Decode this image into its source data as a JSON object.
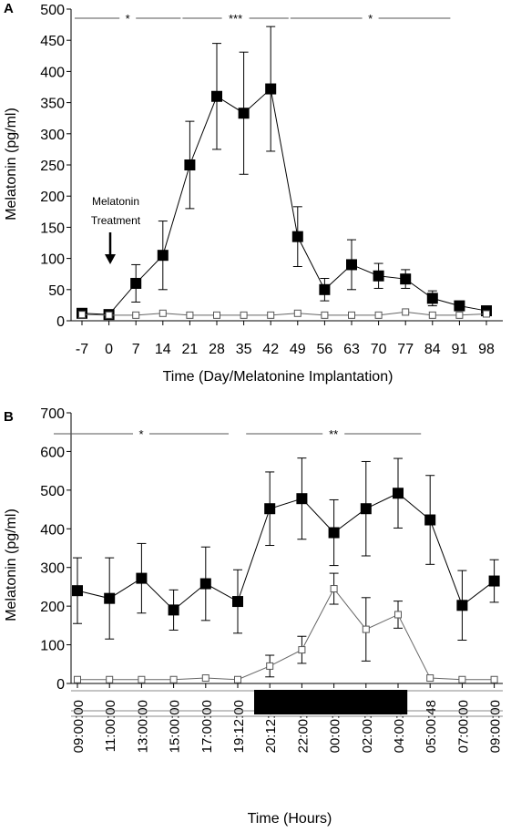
{
  "chart_data": [
    {
      "panel_label": "A",
      "type": "line",
      "ylabel": "Melatonin (pg/ml)",
      "xlabel": "Time (Day/Melatonine Implantation)",
      "ylim": [
        0,
        500
      ],
      "yticks": [
        0,
        50,
        100,
        150,
        200,
        250,
        300,
        350,
        400,
        450,
        500
      ],
      "categories": [
        "-7",
        "0",
        "7",
        "14",
        "21",
        "28",
        "35",
        "42",
        "49",
        "56",
        "63",
        "70",
        "77",
        "84",
        "91",
        "98"
      ],
      "grid": false,
      "series": [
        {
          "marker": "filled-square",
          "color": "#000000",
          "values": [
            12,
            10,
            60,
            105,
            250,
            360,
            333,
            372,
            135,
            50,
            90,
            72,
            67,
            36,
            24,
            16
          ],
          "err_low": [
            0,
            0,
            30,
            55,
            70,
            85,
            98,
            100,
            48,
            18,
            40,
            20,
            15,
            12,
            0,
            0
          ],
          "err_high": [
            0,
            0,
            30,
            55,
            70,
            85,
            98,
            100,
            48,
            18,
            40,
            20,
            15,
            12,
            0,
            0
          ]
        },
        {
          "marker": "open-square",
          "color": "#777777",
          "values": [
            10,
            9,
            9,
            12,
            9,
            9,
            9,
            9,
            12,
            9,
            9,
            9,
            14,
            9,
            9,
            11
          ],
          "err_low": [
            0,
            0,
            0,
            0,
            0,
            0,
            0,
            0,
            0,
            0,
            0,
            0,
            0,
            0,
            0,
            0
          ],
          "err_high": [
            0,
            0,
            0,
            0,
            0,
            0,
            0,
            0,
            0,
            0,
            0,
            0,
            0,
            0,
            0,
            0
          ]
        }
      ],
      "significance": [
        {
          "label": "*",
          "from": "-7",
          "to": "21"
        },
        {
          "label": "***",
          "from": "21",
          "to": "49"
        },
        {
          "label": "*",
          "from": "49",
          "to": "91"
        }
      ],
      "annotations": [
        {
          "lines": [
            "Melatonin",
            "Treatment"
          ],
          "at": "0",
          "arrow": "down"
        }
      ]
    },
    {
      "panel_label": "B",
      "type": "line",
      "ylabel": "Melatonin (pg/ml)",
      "xlabel": "Time (Hours)",
      "ylim": [
        0,
        700
      ],
      "yticks": [
        0,
        100,
        200,
        300,
        400,
        500,
        600,
        700
      ],
      "categories": [
        "09:00:00",
        "11:00:00",
        "13:00:00",
        "15:00:00",
        "17:00:00",
        "19:12:00",
        "20:12:00",
        "22:00:00",
        "00:00:00",
        "02:00:00",
        "04:00:42",
        "05:00:48",
        "07:00:00",
        "09:00:00"
      ],
      "grid": false,
      "series": [
        {
          "marker": "filled-square",
          "color": "#000000",
          "values": [
            240,
            220,
            272,
            190,
            258,
            212,
            452,
            478,
            390,
            452,
            492,
            423,
            202,
            265
          ],
          "err_low": [
            85,
            105,
            90,
            52,
            95,
            82,
            95,
            105,
            85,
            122,
            90,
            115,
            90,
            55
          ],
          "err_high": [
            85,
            105,
            90,
            52,
            95,
            82,
            95,
            105,
            85,
            122,
            90,
            115,
            90,
            55
          ]
        },
        {
          "marker": "open-square",
          "color": "#777777",
          "values": [
            10,
            10,
            10,
            10,
            14,
            10,
            45,
            87,
            245,
            140,
            178,
            14,
            10,
            10
          ],
          "err_low": [
            0,
            0,
            0,
            0,
            0,
            0,
            28,
            35,
            40,
            82,
            35,
            0,
            0,
            0
          ],
          "err_high": [
            0,
            0,
            0,
            0,
            0,
            0,
            28,
            35,
            40,
            82,
            35,
            0,
            0,
            0
          ]
        }
      ],
      "significance": [
        {
          "label": "*",
          "from": "09:00:00",
          "to": "19:12:00"
        },
        {
          "label": "**",
          "from": "20:12:00",
          "to": "05:00:48"
        }
      ],
      "dark_phase": {
        "from": "19:12:00",
        "to": "05:00:48"
      }
    }
  ]
}
